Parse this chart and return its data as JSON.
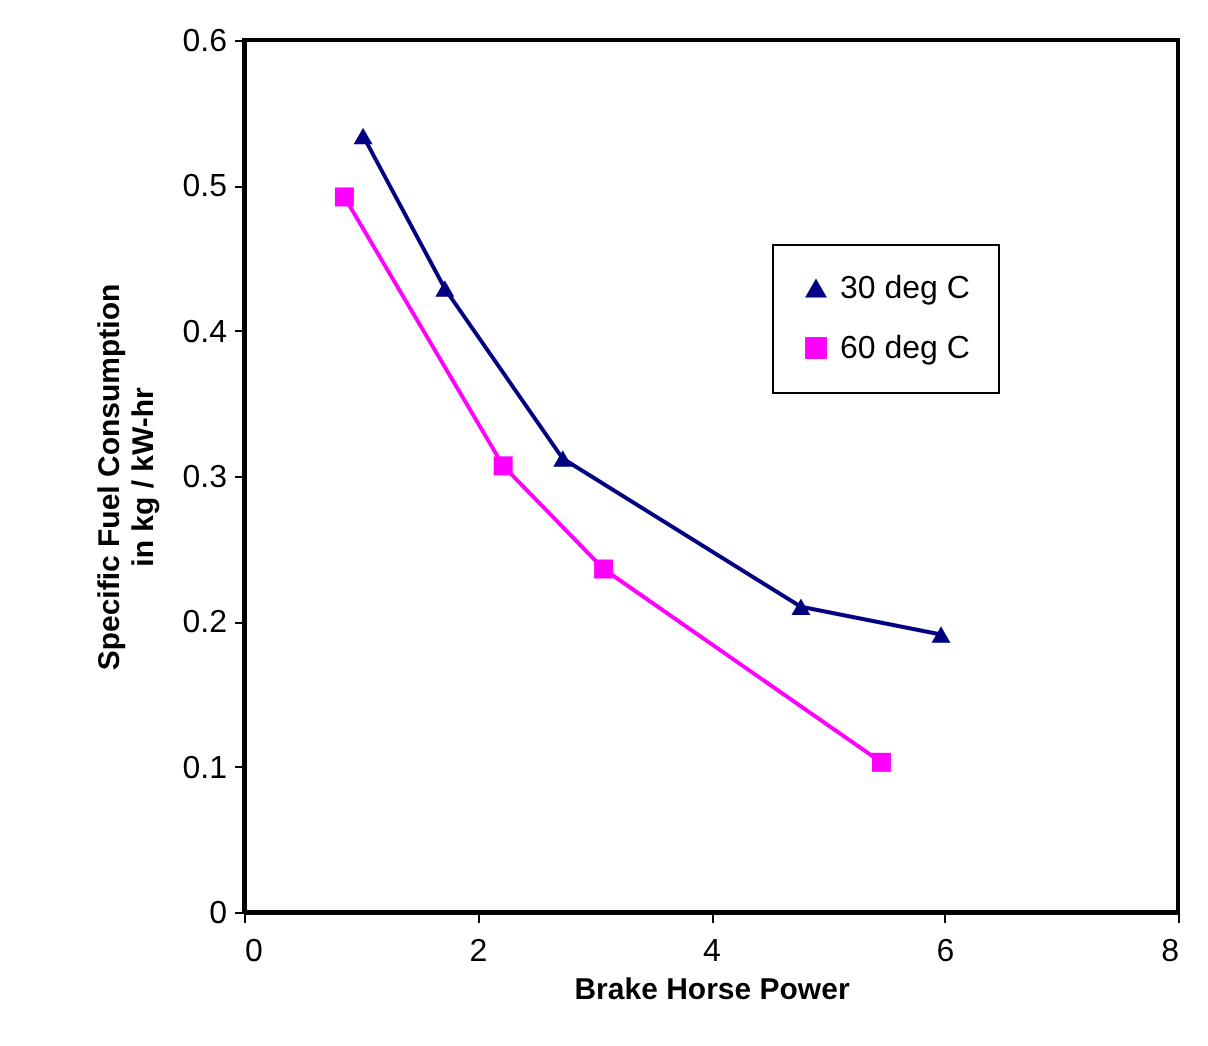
{
  "chart_data": {
    "type": "line",
    "xlabel": "Brake Horse Power",
    "ylabel": "Specific Fuel Consumption\nin kg / kW-hr",
    "xlim": [
      0,
      8
    ],
    "xticks": [
      0,
      2,
      4,
      6,
      8
    ],
    "ylim": [
      0,
      0.6
    ],
    "yticks": [
      0,
      0.1,
      0.2,
      0.3,
      0.4,
      0.5,
      0.6
    ],
    "grid": false,
    "legend": "top right",
    "series": [
      {
        "name": "30 deg C",
        "color": "#000080",
        "marker": "triangle",
        "x": [
          1.02,
          1.72,
          2.73,
          4.77,
          5.97
        ],
        "values": [
          0.534,
          0.429,
          0.312,
          0.21,
          0.191
        ]
      },
      {
        "name": "60 deg C",
        "color": "#ff00ff",
        "marker": "square",
        "x": [
          0.86,
          2.22,
          3.08,
          5.46
        ],
        "values": [
          0.492,
          0.307,
          0.236,
          0.103
        ]
      }
    ]
  }
}
